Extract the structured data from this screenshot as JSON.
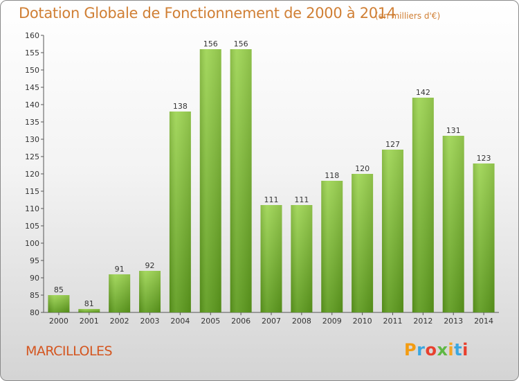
{
  "chart_data": {
    "type": "bar",
    "title": "Dotation Globale de Fonctionnement de 2000 à 2014",
    "subtitle": "(en milliers d'€)",
    "xlabel": "",
    "ylabel": "",
    "categories": [
      "2000",
      "2001",
      "2002",
      "2003",
      "2004",
      "2005",
      "2006",
      "2007",
      "2008",
      "2009",
      "2010",
      "2011",
      "2012",
      "2013",
      "2014"
    ],
    "values": [
      85,
      81,
      91,
      92,
      138,
      156,
      156,
      111,
      111,
      118,
      120,
      127,
      142,
      131,
      123
    ],
    "ylim": [
      80,
      160
    ],
    "yticks": [
      80,
      85,
      90,
      95,
      100,
      105,
      110,
      115,
      120,
      125,
      130,
      135,
      140,
      145,
      150,
      155,
      160
    ],
    "grid": false,
    "bar_color": "#8dc63f"
  },
  "footer": {
    "town": "MARCILLOLES",
    "logo_letters": [
      "P",
      "r",
      "o",
      "x",
      "i",
      "t",
      "i"
    ],
    "logo_colors": [
      "#f39c12",
      "#3ba7e0",
      "#e8402e",
      "#5fb844",
      "#f5a623",
      "#3ba7e0",
      "#e8402e"
    ]
  }
}
